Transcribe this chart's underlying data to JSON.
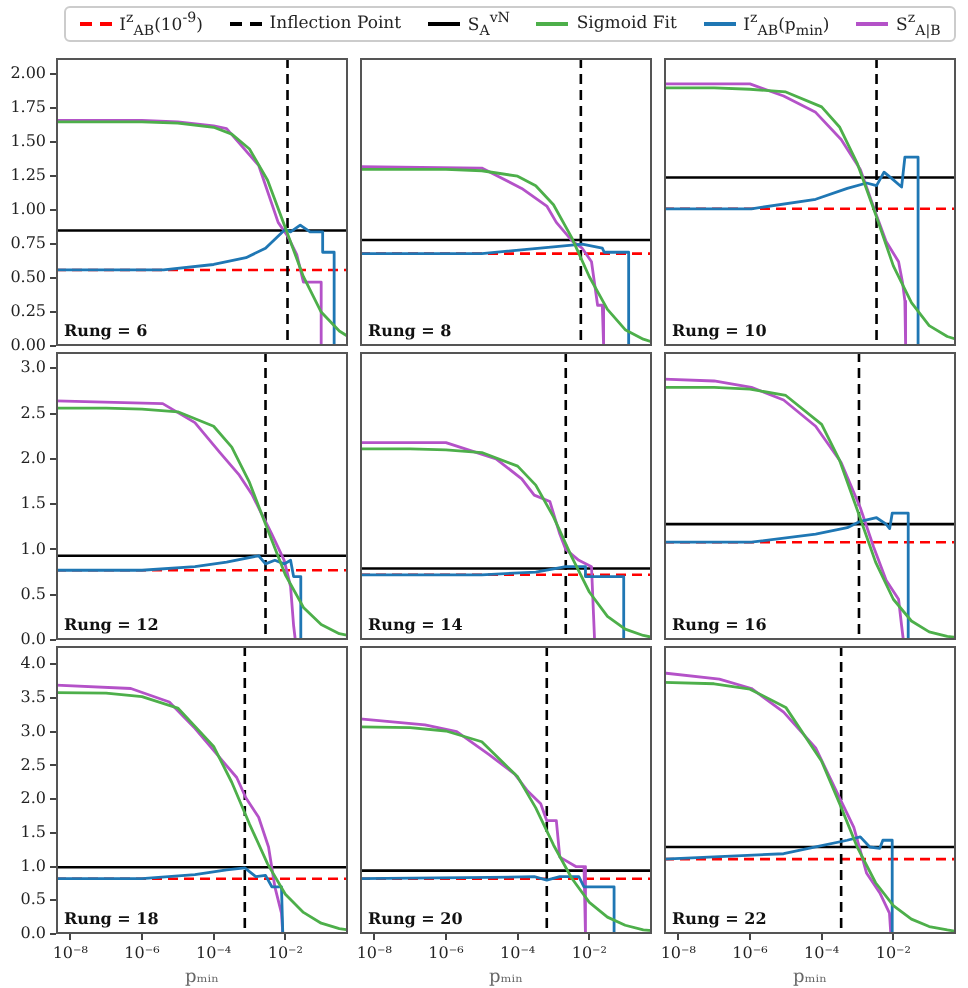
{
  "chart_data": [
    {
      "type": "line",
      "annotations": [
        "Rung = 6"
      ],
      "legend": "top",
      "log": "x",
      "tick_labels": "y",
      "xlim": [
        4e-09,
        0.56
      ],
      "ylim": [
        0,
        2.12
      ],
      "yticks": [
        {
          "value": 0,
          "label": "0.00"
        },
        0.25,
        {
          "value": 0.5,
          "label": "0.50"
        },
        0.75,
        {
          "value": 1,
          "label": "1.00"
        },
        1.25,
        {
          "value": 1.5,
          "label": "1.50"
        },
        1.75,
        {
          "value": 2,
          "label": "2.00"
        }
      ],
      "ref_lines": [
        {
          "axis": "y",
          "value": 0.56,
          "color": "#ff0000",
          "line_style": "dashed",
          "label": "I$^{z}$$_{AB}$(10$^{-9}$)"
        },
        {
          "axis": "x",
          "value": 0.0115,
          "color": "#000000",
          "line_style": "dashed",
          "label": "Inflection Point"
        },
        {
          "axis": "y",
          "value": 0.85,
          "color": "#000000",
          "line_style": "solid",
          "label": "S$_{A}$$^{vN}$"
        }
      ],
      "series": [
        {
          "name": "Sigmoid Fit",
          "color": "#4daf4a",
          "x": [
            4e-09,
            1e-07,
            1e-06,
            1e-05,
            0.0001,
            0.00032,
            0.001,
            0.0032,
            0.01,
            0.032,
            0.1,
            0.32,
            0.56
          ],
          "values": [
            1.65,
            1.65,
            1.65,
            1.64,
            1.61,
            1.56,
            1.45,
            1.22,
            0.87,
            0.51,
            0.25,
            0.11,
            0.07
          ]
        },
        {
          "name": "I$^{z}$$_{AB}$(p$_{min}$)",
          "color": "#1f77b4",
          "x": [
            4e-09,
            4e-06,
            0.0001,
            0.0008,
            0.0028,
            0.01,
            0.014,
            0.026,
            0.049,
            0.11,
            0.11,
            0.23,
            0.23
          ],
          "values": [
            0.56,
            0.56,
            0.6,
            0.65,
            0.72,
            0.86,
            0.84,
            0.89,
            0.84,
            0.84,
            0.69,
            0.69,
            0
          ]
        },
        {
          "name": "S$^{z}$$_{A|B}$",
          "color": "#b452c8",
          "x": [
            4e-09,
            1e-06,
            1e-05,
            0.0001,
            0.00023,
            0.0018,
            0.0063,
            0.0115,
            0.021,
            0.032,
            0.1,
            0.1
          ],
          "values": [
            1.66,
            1.66,
            1.65,
            1.62,
            1.6,
            1.33,
            0.91,
            0.81,
            0.67,
            0.47,
            0.47,
            0
          ]
        }
      ]
    },
    {
      "type": "line",
      "annotations": [
        "Rung = 8"
      ],
      "log": "x",
      "tick_labels": false,
      "xlim": [
        4e-09,
        0.56
      ],
      "ylim": [
        0,
        2.12
      ],
      "ref_lines": [
        {
          "axis": "y",
          "value": 0.68,
          "color": "#ff0000",
          "line_style": "dashed"
        },
        {
          "axis": "x",
          "value": 0.0058,
          "color": "#000000",
          "line_style": "dashed"
        },
        {
          "axis": "y",
          "value": 0.78,
          "color": "#000000",
          "line_style": "solid"
        }
      ],
      "series": [
        {
          "color": "#4daf4a",
          "x": [
            4e-09,
            1e-07,
            1e-06,
            1e-05,
            0.0001,
            0.00032,
            0.001,
            0.0032,
            0.01,
            0.032,
            0.1,
            0.32,
            0.56
          ],
          "values": [
            1.3,
            1.3,
            1.3,
            1.29,
            1.25,
            1.18,
            1.04,
            0.8,
            0.51,
            0.27,
            0.12,
            0.05,
            0.03
          ]
        },
        {
          "color": "#1f77b4",
          "x": [
            4e-09,
            1e-05,
            0.001,
            0.0063,
            0.023,
            0.026,
            0.125,
            0.125
          ],
          "values": [
            0.68,
            0.68,
            0.73,
            0.75,
            0.72,
            0.69,
            0.69,
            0
          ]
        },
        {
          "color": "#b452c8",
          "x": [
            4e-09,
            1e-05,
            0.00013,
            0.00065,
            0.0012,
            0.0034,
            0.0063,
            0.0115,
            0.017,
            0.023,
            0.025
          ],
          "values": [
            1.32,
            1.31,
            1.16,
            1.03,
            0.91,
            0.77,
            0.72,
            0.62,
            0.3,
            0.3,
            0
          ]
        }
      ]
    },
    {
      "type": "line",
      "annotations": [
        "Rung = 10"
      ],
      "log": "x",
      "tick_labels": false,
      "xlim": [
        4e-09,
        0.56
      ],
      "ylim": [
        0,
        2.12
      ],
      "ref_lines": [
        {
          "axis": "y",
          "value": 1.01,
          "color": "#ff0000",
          "line_style": "dashed"
        },
        {
          "axis": "x",
          "value": 0.0034,
          "color": "#000000",
          "line_style": "dashed"
        },
        {
          "axis": "y",
          "value": 1.24,
          "color": "#000000",
          "line_style": "solid"
        }
      ],
      "series": [
        {
          "color": "#4daf4a",
          "x": [
            4e-09,
            1e-07,
            1e-06,
            1e-05,
            0.0001,
            0.00032,
            0.001,
            0.0032,
            0.01,
            0.032,
            0.1,
            0.32,
            0.56
          ],
          "values": [
            1.9,
            1.9,
            1.89,
            1.87,
            1.76,
            1.61,
            1.34,
            0.97,
            0.59,
            0.32,
            0.15,
            0.07,
            0.05
          ]
        },
        {
          "color": "#1f77b4",
          "x": [
            4e-09,
            1.1e-06,
            6.8e-05,
            0.00052,
            0.0018,
            0.0034,
            0.0055,
            0.0093,
            0.017,
            0.021,
            0.049,
            0.049
          ],
          "values": [
            1.01,
            1.01,
            1.08,
            1.16,
            1.2,
            1.18,
            1.28,
            1.23,
            1.17,
            1.39,
            1.39,
            0
          ]
        },
        {
          "color": "#b452c8",
          "x": [
            4e-09,
            1e-06,
            8.7e-06,
            6.8e-05,
            0.00035,
            0.0012,
            0.0034,
            0.0063,
            0.014,
            0.018,
            0.021,
            0.022
          ],
          "values": [
            1.93,
            1.93,
            1.84,
            1.72,
            1.52,
            1.3,
            0.96,
            0.77,
            0.62,
            0.47,
            0.33,
            0
          ]
        }
      ]
    },
    {
      "type": "line",
      "annotations": [
        "Rung = 12"
      ],
      "log": "x",
      "tick_labels": "y",
      "xlim": [
        4e-09,
        0.56
      ],
      "ylim": [
        0,
        3.18
      ],
      "yticks": [
        {
          "value": 0,
          "label": "0.0"
        },
        0.5,
        {
          "value": 1,
          "label": "1.0"
        },
        1.5,
        {
          "value": 2,
          "label": "2.0"
        },
        2.5,
        {
          "value": 3,
          "label": "3.0"
        }
      ],
      "ref_lines": [
        {
          "axis": "y",
          "value": 0.77,
          "color": "#ff0000",
          "line_style": "dashed"
        },
        {
          "axis": "x",
          "value": 0.0028,
          "color": "#000000",
          "line_style": "dashed"
        },
        {
          "axis": "y",
          "value": 0.93,
          "color": "#000000",
          "line_style": "solid"
        }
      ],
      "series": [
        {
          "color": "#4daf4a",
          "x": [
            4e-09,
            1e-07,
            1e-06,
            1e-05,
            0.0001,
            0.00032,
            0.001,
            0.0032,
            0.01,
            0.032,
            0.1,
            0.32,
            0.56
          ],
          "values": [
            2.56,
            2.56,
            2.55,
            2.52,
            2.36,
            2.13,
            1.74,
            1.22,
            0.72,
            0.36,
            0.17,
            0.07,
            0.05
          ]
        },
        {
          "color": "#1f77b4",
          "x": [
            4e-09,
            1e-06,
            3e-05,
            0.00023,
            0.0018,
            0.0028,
            0.0051,
            0.0093,
            0.014,
            0.017,
            0.027,
            0.027
          ],
          "values": [
            0.77,
            0.77,
            0.81,
            0.86,
            0.93,
            0.84,
            0.88,
            0.84,
            0.88,
            0.7,
            0.7,
            0
          ]
        },
        {
          "color": "#b452c8",
          "x": [
            4e-09,
            3.8e-06,
            3e-05,
            0.00015,
            0.00052,
            0.0012,
            0.0022,
            0.0028,
            0.0042,
            0.0093,
            0.014,
            0.017,
            0.019
          ],
          "values": [
            2.64,
            2.61,
            2.4,
            2.07,
            1.82,
            1.6,
            1.39,
            1.31,
            1.17,
            0.88,
            0.59,
            0.16,
            0
          ]
        }
      ]
    },
    {
      "type": "line",
      "annotations": [
        "Rung = 14"
      ],
      "log": "x",
      "tick_labels": false,
      "xlim": [
        4e-09,
        0.56
      ],
      "ylim": [
        0,
        3.18
      ],
      "ref_lines": [
        {
          "axis": "y",
          "value": 0.72,
          "color": "#ff0000",
          "line_style": "dashed"
        },
        {
          "axis": "x",
          "value": 0.0022,
          "color": "#000000",
          "line_style": "dashed"
        },
        {
          "axis": "y",
          "value": 0.79,
          "color": "#000000",
          "line_style": "solid"
        }
      ],
      "series": [
        {
          "color": "#4daf4a",
          "x": [
            4e-09,
            1e-07,
            1e-06,
            1e-05,
            0.0001,
            0.00032,
            0.001,
            0.0032,
            0.01,
            0.032,
            0.1,
            0.32,
            0.56
          ],
          "values": [
            2.11,
            2.11,
            2.1,
            2.07,
            1.92,
            1.71,
            1.36,
            0.92,
            0.53,
            0.26,
            0.12,
            0.05,
            0.03
          ]
        },
        {
          "color": "#1f77b4",
          "x": [
            4e-09,
            1e-05,
            0.00032,
            0.0022,
            0.0078,
            0.0078,
            0.091,
            0.091
          ],
          "values": [
            0.72,
            0.72,
            0.75,
            0.81,
            0.81,
            0.7,
            0.7,
            0
          ]
        },
        {
          "color": "#b452c8",
          "x": [
            4e-09,
            1e-06,
            2e-06,
            2.5e-05,
            0.00013,
            0.00029,
            0.00079,
            0.0015,
            0.0022,
            0.0051,
            0.0115,
            0.014
          ],
          "values": [
            2.18,
            2.18,
            2.14,
            2.0,
            1.78,
            1.6,
            1.53,
            1.17,
            1.0,
            0.88,
            0.81,
            0
          ]
        }
      ]
    },
    {
      "type": "line",
      "annotations": [
        "Rung = 16"
      ],
      "log": "x",
      "tick_labels": false,
      "xlim": [
        4e-09,
        0.56
      ],
      "ylim": [
        0,
        3.18
      ],
      "ref_lines": [
        {
          "axis": "y",
          "value": 1.08,
          "color": "#ff0000",
          "line_style": "dashed"
        },
        {
          "axis": "x",
          "value": 0.0011,
          "color": "#000000",
          "line_style": "dashed"
        },
        {
          "axis": "y",
          "value": 1.28,
          "color": "#000000",
          "line_style": "solid"
        }
      ],
      "series": [
        {
          "color": "#4daf4a",
          "x": [
            4e-09,
            1e-07,
            1e-06,
            1e-05,
            0.0001,
            0.00032,
            0.001,
            0.0032,
            0.01,
            0.032,
            0.1,
            0.32,
            0.56
          ],
          "values": [
            2.79,
            2.79,
            2.77,
            2.7,
            2.38,
            1.98,
            1.43,
            0.86,
            0.45,
            0.21,
            0.09,
            0.04,
            0.03
          ]
        },
        {
          "color": "#1f77b4",
          "x": [
            4e-09,
            1.1e-06,
            6.8e-05,
            0.00052,
            0.0012,
            0.0034,
            0.0063,
            0.0079,
            0.0093,
            0.026,
            0.026
          ],
          "values": [
            1.08,
            1.08,
            1.17,
            1.24,
            1.31,
            1.35,
            1.28,
            1.23,
            1.4,
            1.4,
            0
          ]
        },
        {
          "color": "#b452c8",
          "x": [
            4e-09,
            1e-07,
            1.1e-06,
            8.7e-06,
            6.8e-05,
            0.00035,
            0.0012,
            0.0028,
            0.0063,
            0.014,
            0.017,
            0.019
          ],
          "values": [
            2.88,
            2.86,
            2.79,
            2.65,
            2.36,
            1.96,
            1.46,
            1.03,
            0.66,
            0.45,
            0.16,
            0
          ]
        }
      ]
    },
    {
      "type": "line",
      "annotations": [
        "Rung = 18"
      ],
      "xlabel": "pₘᵢₙ",
      "log": "x",
      "xlim": [
        4e-09,
        0.56
      ],
      "ylim": [
        0,
        4.27
      ],
      "xticks": [
        {
          "value": 1e-08,
          "label": "10⁻⁸"
        },
        {
          "value": 1e-06,
          "label": "10⁻⁶"
        },
        {
          "value": 0.0001,
          "label": "10⁻⁴"
        },
        {
          "value": 0.01,
          "label": "10⁻²"
        }
      ],
      "yticks": [
        {
          "value": 0,
          "label": "0.0"
        },
        0.5,
        {
          "value": 1,
          "label": "1.0"
        },
        1.5,
        {
          "value": 2,
          "label": "2.0"
        },
        2.5,
        {
          "value": 3,
          "label": "3.0"
        },
        3.5,
        {
          "value": 4,
          "label": "4.0"
        }
      ],
      "ref_lines": [
        {
          "axis": "y",
          "value": 0.82,
          "color": "#ff0000",
          "line_style": "dashed"
        },
        {
          "axis": "x",
          "value": 0.00074,
          "color": "#000000",
          "line_style": "dashed"
        },
        {
          "axis": "y",
          "value": 0.99,
          "color": "#000000",
          "line_style": "solid"
        }
      ],
      "series": [
        {
          "color": "#4daf4a",
          "x": [
            4e-09,
            1e-07,
            1e-06,
            1e-05,
            0.0001,
            0.00032,
            0.001,
            0.0032,
            0.01,
            0.032,
            0.1,
            0.32,
            0.56
          ],
          "values": [
            3.58,
            3.57,
            3.52,
            3.35,
            2.78,
            2.25,
            1.63,
            1.04,
            0.59,
            0.32,
            0.16,
            0.08,
            0.06
          ]
        },
        {
          "color": "#1f77b4",
          "x": [
            4e-09,
            1e-06,
            3e-05,
            0.00023,
            0.00074,
            0.0015,
            0.0028,
            0.0042,
            0.0078,
            0.0085
          ],
          "values": [
            0.82,
            0.82,
            0.88,
            0.95,
            0.98,
            0.85,
            0.87,
            0.7,
            0.7,
            0
          ]
        },
        {
          "color": "#b452c8",
          "x": [
            4e-09,
            4.9e-07,
            5.8e-06,
            3e-05,
            0.00015,
            0.00044,
            0.00079,
            0.0018,
            0.0034,
            0.0051,
            0.0078,
            0.0085
          ],
          "values": [
            3.69,
            3.64,
            3.44,
            3.05,
            2.61,
            2.32,
            2.02,
            1.73,
            1.29,
            0.7,
            0.31,
            0
          ]
        }
      ]
    },
    {
      "type": "line",
      "annotations": [
        "Rung = 20"
      ],
      "xlabel": "pₘᵢₙ",
      "log": "x",
      "tick_labels": "x",
      "xlim": [
        4e-09,
        0.56
      ],
      "ylim": [
        0,
        4.27
      ],
      "xticks": [
        {
          "value": 1e-08,
          "label": "10⁻⁸"
        },
        {
          "value": 1e-06,
          "label": "10⁻⁶"
        },
        {
          "value": 0.0001,
          "label": "10⁻⁴"
        },
        {
          "value": 0.01,
          "label": "10⁻²"
        }
      ],
      "ref_lines": [
        {
          "axis": "y",
          "value": 0.82,
          "color": "#ff0000",
          "line_style": "dashed"
        },
        {
          "axis": "x",
          "value": 0.00065,
          "color": "#000000",
          "line_style": "dashed"
        },
        {
          "axis": "y",
          "value": 0.94,
          "color": "#000000",
          "line_style": "solid"
        }
      ],
      "series": [
        {
          "color": "#4daf4a",
          "x": [
            4e-09,
            1e-07,
            1e-06,
            1e-05,
            0.0001,
            0.00032,
            0.001,
            0.0032,
            0.01,
            0.032,
            0.1,
            0.32,
            0.56
          ],
          "values": [
            3.07,
            3.06,
            3.01,
            2.85,
            2.33,
            1.87,
            1.32,
            0.83,
            0.47,
            0.25,
            0.13,
            0.06,
            0.05
          ]
        },
        {
          "color": "#1f77b4",
          "x": [
            4e-09,
            1.6e-05,
            0.00029,
            0.00065,
            0.0015,
            0.0051,
            0.0071,
            0.049,
            0.049
          ],
          "values": [
            0.82,
            0.84,
            0.85,
            0.8,
            0.85,
            0.85,
            0.7,
            0.7,
            0
          ]
        },
        {
          "color": "#b452c8",
          "x": [
            4e-09,
            2.6e-07,
            2e-06,
            1.6e-05,
            8.3e-05,
            0.00019,
            0.00044,
            0.00065,
            0.0012,
            0.0015,
            0.0042,
            0.0071,
            0.0078
          ],
          "values": [
            3.19,
            3.1,
            3.0,
            2.66,
            2.37,
            2.12,
            1.93,
            1.68,
            1.68,
            1.14,
            1.0,
            1.0,
            0
          ]
        }
      ]
    },
    {
      "type": "line",
      "annotations": [
        "Rung = 22"
      ],
      "xlabel": "pₘᵢₙ",
      "log": "x",
      "tick_labels": "x",
      "xlim": [
        4e-09,
        0.56
      ],
      "ylim": [
        0,
        4.27
      ],
      "xticks": [
        {
          "value": 1e-08,
          "label": "10⁻⁸"
        },
        {
          "value": 1e-06,
          "label": "10⁻⁶"
        },
        {
          "value": 0.0001,
          "label": "10⁻⁴"
        },
        {
          "value": 0.01,
          "label": "10⁻²"
        }
      ],
      "ref_lines": [
        {
          "axis": "y",
          "value": 1.11,
          "color": "#ff0000",
          "line_style": "dashed"
        },
        {
          "axis": "x",
          "value": 0.00035,
          "color": "#000000",
          "line_style": "dashed"
        },
        {
          "axis": "y",
          "value": 1.29,
          "color": "#000000",
          "line_style": "solid"
        }
      ],
      "series": [
        {
          "color": "#4daf4a",
          "x": [
            4e-09,
            1e-07,
            1e-06,
            1e-05,
            0.0001,
            0.00032,
            0.001,
            0.0032,
            0.01,
            0.032,
            0.1,
            0.32,
            0.56
          ],
          "values": [
            3.73,
            3.71,
            3.63,
            3.36,
            2.56,
            1.93,
            1.28,
            0.76,
            0.42,
            0.22,
            0.11,
            0.06,
            0.04
          ]
        },
        {
          "color": "#1f77b4",
          "x": [
            4e-09,
            8.7e-06,
            6.8e-05,
            0.00052,
            0.0012,
            0.0022,
            0.0042,
            0.0051,
            0.0093,
            0.0093
          ],
          "values": [
            1.11,
            1.19,
            1.29,
            1.39,
            1.44,
            1.29,
            1.27,
            1.39,
            1.39,
            0
          ]
        },
        {
          "color": "#b452c8",
          "x": [
            4e-09,
            1.4e-07,
            1.1e-06,
            8.7e-06,
            6.8e-05,
            0.00035,
            0.00079,
            0.0018,
            0.0042,
            0.0078,
            0.0085
          ],
          "values": [
            3.87,
            3.78,
            3.64,
            3.29,
            2.76,
            1.97,
            1.58,
            0.9,
            0.61,
            0.31,
            0
          ]
        }
      ]
    }
  ]
}
